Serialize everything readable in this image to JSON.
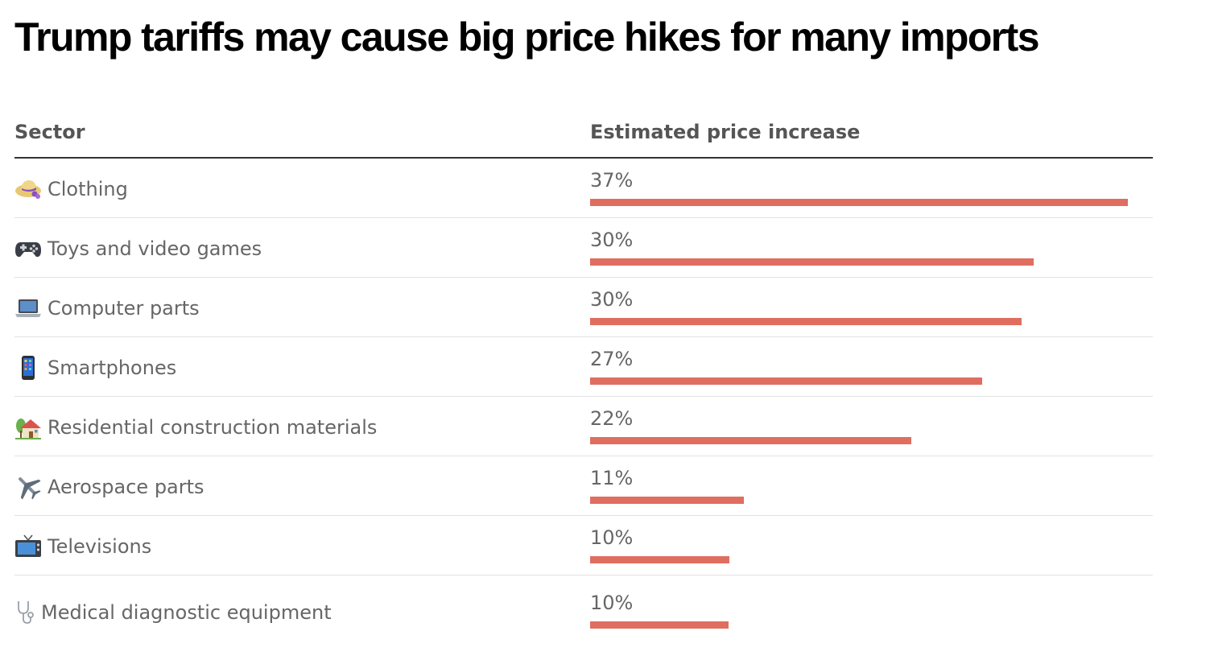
{
  "chart_data": {
    "type": "table",
    "title": "Trump tariffs may cause big price hikes for many imports",
    "columns": [
      "Sector",
      "Estimated price increase"
    ],
    "bar_color": "#df6e61",
    "rows": [
      {
        "icon": "hat-icon",
        "category": "Clothing",
        "value": 37,
        "label": "37%"
      },
      {
        "icon": "game-controller-icon",
        "category": "Toys and video games",
        "value": 30.5,
        "label": "30%"
      },
      {
        "icon": "laptop-icon",
        "category": "Computer parts",
        "value": 29.7,
        "label": "30%"
      },
      {
        "icon": "smartphone-icon",
        "category": "Smartphones",
        "value": 27,
        "label": "27%"
      },
      {
        "icon": "house-icon",
        "category": "Residential construction materials",
        "value": 22.1,
        "label": "22%"
      },
      {
        "icon": "airplane-icon",
        "category": "Aerospace parts",
        "value": 10.6,
        "label": "11%"
      },
      {
        "icon": "television-icon",
        "category": "Televisions",
        "value": 9.6,
        "label": "10%"
      },
      {
        "icon": "stethoscope-icon",
        "category": "Medical diagnostic equipment",
        "value": 9.5,
        "label": "10%"
      }
    ]
  }
}
